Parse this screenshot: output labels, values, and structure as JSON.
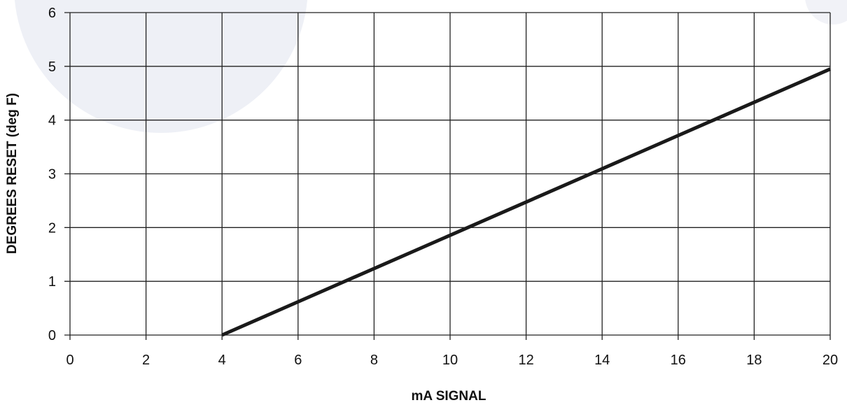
{
  "chart_data": {
    "type": "line",
    "title": "",
    "xlabel": "mA SIGNAL",
    "ylabel": "DEGREES  RESET  (deg F)",
    "xlim": [
      0,
      20
    ],
    "ylim": [
      0,
      6
    ],
    "x_ticks": [
      "0",
      "2",
      "4",
      "6",
      "8",
      "10",
      "12",
      "14",
      "16",
      "18",
      "20"
    ],
    "y_ticks": [
      "0",
      "1",
      "2",
      "3",
      "4",
      "5",
      "6"
    ],
    "grid": true,
    "legend": "none",
    "series": [
      {
        "x": [
          4,
          20
        ],
        "y": [
          0,
          4.95
        ]
      }
    ],
    "colors": {
      "line": "#1a1a1a",
      "grid": "#222222",
      "background": "#ffffff",
      "decor": "#eef0f6"
    }
  }
}
